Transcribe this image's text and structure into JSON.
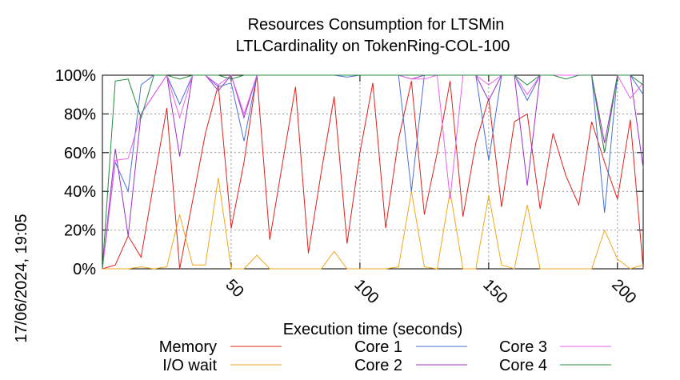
{
  "chart_data": {
    "type": "line",
    "title": "Resources Consumption for LTSMin",
    "subtitle": "LTLCardinality on TokenRing-COL-100",
    "xlabel": "Execution time (seconds)",
    "ylabel": "",
    "side_label": "17/06/2024, 19:05",
    "xlim": [
      0,
      210
    ],
    "ylim": [
      0,
      100
    ],
    "x_ticks": [
      50,
      100,
      150,
      200
    ],
    "y_ticks": [
      0,
      20,
      40,
      60,
      80,
      100
    ],
    "y_tick_labels": [
      "0%",
      "20%",
      "40%",
      "60%",
      "80%",
      "100%"
    ],
    "grid": true,
    "legend_position": "bottom",
    "series": [
      {
        "name": "Memory",
        "color": "#e0201b",
        "x": [
          0,
          5,
          10,
          15,
          20,
          25,
          30,
          35,
          40,
          45,
          50,
          55,
          60,
          65,
          70,
          75,
          80,
          85,
          90,
          95,
          100,
          105,
          110,
          115,
          120,
          125,
          130,
          135,
          140,
          145,
          150,
          155,
          160,
          165,
          170,
          175,
          180,
          185,
          190,
          195,
          200,
          205,
          210
        ],
        "y": [
          0,
          2,
          17,
          6,
          45,
          83,
          0,
          35,
          70,
          95,
          21,
          55,
          100,
          15,
          55,
          94,
          8,
          50,
          89,
          13,
          60,
          96,
          21,
          67,
          97,
          28,
          60,
          97,
          27,
          65,
          88,
          32,
          76,
          80,
          31,
          70,
          48,
          33,
          76,
          55,
          36,
          77,
          0
        ]
      },
      {
        "name": "I/O wait",
        "color": "#f0a81d",
        "x": [
          0,
          5,
          10,
          15,
          20,
          25,
          30,
          35,
          40,
          45,
          50,
          55,
          60,
          65,
          70,
          75,
          80,
          85,
          90,
          95,
          100,
          105,
          110,
          115,
          120,
          125,
          130,
          135,
          140,
          145,
          150,
          155,
          160,
          165,
          170,
          175,
          180,
          185,
          190,
          195,
          200,
          205,
          210
        ],
        "y": [
          0,
          0,
          0,
          1,
          0,
          1,
          28,
          2,
          2,
          47,
          0,
          0,
          7,
          0,
          0,
          0,
          0,
          0,
          9,
          0,
          0,
          0,
          0,
          1,
          40,
          1,
          0,
          40,
          0,
          0,
          38,
          2,
          0,
          33,
          0,
          0,
          0,
          0,
          0,
          20,
          5,
          0,
          2
        ]
      },
      {
        "name": "Core 1",
        "color": "#4a6fd8",
        "x": [
          0,
          5,
          10,
          15,
          20,
          25,
          30,
          35,
          40,
          45,
          50,
          55,
          60,
          65,
          70,
          75,
          80,
          85,
          90,
          95,
          100,
          105,
          110,
          115,
          120,
          125,
          130,
          135,
          140,
          145,
          150,
          155,
          160,
          165,
          170,
          175,
          180,
          185,
          190,
          195,
          200,
          205,
          210
        ],
        "y": [
          0,
          55,
          40,
          95,
          100,
          100,
          85,
          100,
          100,
          94,
          96,
          66,
          100,
          100,
          100,
          100,
          100,
          100,
          100,
          99,
          100,
          100,
          100,
          100,
          40,
          100,
          100,
          100,
          100,
          100,
          56,
          100,
          100,
          87,
          100,
          100,
          100,
          100,
          100,
          29,
          100,
          100,
          90
        ]
      },
      {
        "name": "Core 2",
        "color": "#9b30c8",
        "x": [
          0,
          5,
          10,
          15,
          20,
          25,
          30,
          35,
          40,
          45,
          50,
          55,
          60,
          65,
          70,
          75,
          80,
          85,
          90,
          95,
          100,
          105,
          110,
          115,
          120,
          125,
          130,
          135,
          140,
          145,
          150,
          155,
          160,
          165,
          170,
          175,
          180,
          185,
          190,
          195,
          200,
          205,
          210
        ],
        "y": [
          0,
          62,
          17,
          80,
          90,
          100,
          58,
          100,
          100,
          92,
          100,
          78,
          100,
          100,
          100,
          100,
          100,
          100,
          100,
          100,
          100,
          100,
          100,
          100,
          98,
          100,
          100,
          100,
          100,
          100,
          87,
          100,
          100,
          43,
          100,
          100,
          100,
          100,
          100,
          65,
          100,
          100,
          52
        ]
      },
      {
        "name": "Core 3",
        "color": "#ea62ea",
        "x": [
          0,
          5,
          10,
          15,
          20,
          25,
          30,
          35,
          40,
          45,
          50,
          55,
          60,
          65,
          70,
          75,
          80,
          85,
          90,
          95,
          100,
          105,
          110,
          115,
          120,
          125,
          130,
          135,
          140,
          145,
          150,
          155,
          160,
          165,
          170,
          175,
          180,
          185,
          190,
          195,
          200,
          205,
          210
        ],
        "y": [
          0,
          56,
          57,
          80,
          90,
          100,
          78,
          100,
          100,
          95,
          100,
          80,
          100,
          100,
          100,
          100,
          100,
          100,
          100,
          100,
          100,
          100,
          100,
          100,
          98,
          98,
          100,
          36,
          100,
          100,
          95,
          100,
          100,
          90,
          100,
          100,
          100,
          100,
          100,
          60,
          100,
          88,
          96
        ]
      },
      {
        "name": "Core 4",
        "color": "#238b3e",
        "x": [
          0,
          5,
          10,
          15,
          20,
          25,
          30,
          35,
          40,
          45,
          50,
          55,
          60,
          65,
          70,
          75,
          80,
          85,
          90,
          95,
          100,
          105,
          110,
          115,
          120,
          125,
          130,
          135,
          140,
          145,
          150,
          155,
          160,
          165,
          170,
          175,
          180,
          185,
          190,
          195,
          200,
          205,
          210
        ],
        "y": [
          0,
          97,
          98,
          78,
          100,
          100,
          98,
          100,
          100,
          100,
          98,
          100,
          100,
          100,
          100,
          100,
          100,
          100,
          100,
          100,
          100,
          100,
          100,
          100,
          100,
          100,
          100,
          100,
          100,
          100,
          100,
          100,
          100,
          95,
          100,
          100,
          98,
          100,
          100,
          60,
          100,
          100,
          95
        ]
      }
    ]
  }
}
